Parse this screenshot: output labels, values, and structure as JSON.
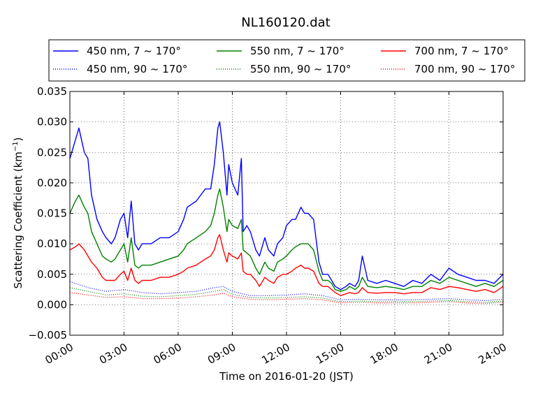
{
  "chart_data": {
    "type": "line",
    "title": "NL160120.dat",
    "xlabel": "Time on 2016-01-20 (JST)",
    "ylabel_main": "Scattering Coefficient (km",
    "ylabel_sup": "−1",
    "ylabel_close": ")",
    "xlim": [
      0,
      24
    ],
    "ylim": [
      -0.005,
      0.035
    ],
    "xticks": [
      0,
      3,
      6,
      9,
      12,
      15,
      18,
      21,
      24
    ],
    "xtick_labels": [
      "00:00",
      "03:00",
      "06:00",
      "09:00",
      "12:00",
      "15:00",
      "18:00",
      "21:00",
      "24:00"
    ],
    "yticks": [
      -0.005,
      0.0,
      0.005,
      0.01,
      0.015,
      0.02,
      0.025,
      0.03,
      0.035
    ],
    "ytick_labels": [
      "−0.005",
      "0.000",
      "0.005",
      "0.010",
      "0.015",
      "0.020",
      "0.025",
      "0.030",
      "0.035"
    ],
    "grid": true,
    "legend_position": "top, above plot",
    "legend_labels": [
      "450 nm, 7 ~ 170°",
      "550 nm, 7 ~ 170°",
      "700 nm, 7 ~ 170°",
      "450 nm, 90 ~ 170°",
      "550 nm, 90 ~ 170°",
      "700 nm, 90 ~ 170°"
    ],
    "series": [
      {
        "name": "450 nm, 7 ~ 170°",
        "color": "#0000ff",
        "style": "solid",
        "x": [
          0,
          0.3,
          0.5,
          0.8,
          1.0,
          1.2,
          1.5,
          1.8,
          2.0,
          2.3,
          2.5,
          2.8,
          3.0,
          3.2,
          3.4,
          3.6,
          3.8,
          4.0,
          4.5,
          5.0,
          5.5,
          6.0,
          6.3,
          6.5,
          7.0,
          7.5,
          7.8,
          8.0,
          8.2,
          8.3,
          8.5,
          8.7,
          8.8,
          9.0,
          9.3,
          9.5,
          9.6,
          9.8,
          10.0,
          10.3,
          10.5,
          10.8,
          11.0,
          11.3,
          11.5,
          11.8,
          12.0,
          12.3,
          12.5,
          12.8,
          13.0,
          13.2,
          13.5,
          13.8,
          14.0,
          14.3,
          14.5,
          14.7,
          15.0,
          15.3,
          15.5,
          15.8,
          16.0,
          16.2,
          16.5,
          17.0,
          17.5,
          18.0,
          18.5,
          19.0,
          19.5,
          20.0,
          20.5,
          21.0,
          21.5,
          22.0,
          22.5,
          23.0,
          23.5,
          24.0
        ],
        "y": [
          0.024,
          0.027,
          0.029,
          0.025,
          0.024,
          0.018,
          0.014,
          0.012,
          0.011,
          0.01,
          0.011,
          0.014,
          0.015,
          0.011,
          0.017,
          0.01,
          0.009,
          0.01,
          0.01,
          0.011,
          0.011,
          0.012,
          0.014,
          0.016,
          0.017,
          0.019,
          0.019,
          0.023,
          0.029,
          0.03,
          0.025,
          0.018,
          0.023,
          0.02,
          0.018,
          0.024,
          0.012,
          0.013,
          0.012,
          0.009,
          0.008,
          0.011,
          0.009,
          0.008,
          0.01,
          0.011,
          0.013,
          0.014,
          0.014,
          0.016,
          0.015,
          0.015,
          0.014,
          0.007,
          0.005,
          0.005,
          0.004,
          0.003,
          0.0025,
          0.003,
          0.0035,
          0.003,
          0.004,
          0.008,
          0.004,
          0.0035,
          0.004,
          0.0035,
          0.003,
          0.004,
          0.0035,
          0.005,
          0.004,
          0.006,
          0.005,
          0.0045,
          0.004,
          0.004,
          0.0035,
          0.005
        ]
      },
      {
        "name": "550 nm, 7 ~ 170°",
        "color": "#008000",
        "style": "solid",
        "x": [
          0,
          0.3,
          0.5,
          0.8,
          1.0,
          1.2,
          1.5,
          1.8,
          2.0,
          2.3,
          2.5,
          2.8,
          3.0,
          3.2,
          3.4,
          3.6,
          3.8,
          4.0,
          4.5,
          5.0,
          5.5,
          6.0,
          6.3,
          6.5,
          7.0,
          7.5,
          7.8,
          8.0,
          8.2,
          8.3,
          8.5,
          8.7,
          8.8,
          9.0,
          9.3,
          9.5,
          9.6,
          9.8,
          10.0,
          10.3,
          10.5,
          10.8,
          11.0,
          11.3,
          11.5,
          11.8,
          12.0,
          12.3,
          12.5,
          12.8,
          13.0,
          13.2,
          13.5,
          13.8,
          14.0,
          14.3,
          14.5,
          14.7,
          15.0,
          15.3,
          15.5,
          15.8,
          16.0,
          16.2,
          16.5,
          17.0,
          17.5,
          18.0,
          18.5,
          19.0,
          19.5,
          20.0,
          20.5,
          21.0,
          21.5,
          22.0,
          22.5,
          23.0,
          23.5,
          24.0
        ],
        "y": [
          0.015,
          0.017,
          0.018,
          0.016,
          0.015,
          0.012,
          0.01,
          0.008,
          0.0075,
          0.007,
          0.0075,
          0.009,
          0.01,
          0.007,
          0.011,
          0.0065,
          0.006,
          0.0065,
          0.0065,
          0.007,
          0.0075,
          0.008,
          0.009,
          0.01,
          0.011,
          0.012,
          0.013,
          0.015,
          0.018,
          0.019,
          0.016,
          0.012,
          0.014,
          0.013,
          0.0125,
          0.014,
          0.009,
          0.0085,
          0.008,
          0.006,
          0.005,
          0.007,
          0.006,
          0.0055,
          0.007,
          0.0075,
          0.008,
          0.009,
          0.0095,
          0.01,
          0.01,
          0.01,
          0.009,
          0.0055,
          0.004,
          0.004,
          0.0035,
          0.0025,
          0.0022,
          0.0025,
          0.003,
          0.0025,
          0.003,
          0.0045,
          0.003,
          0.0028,
          0.003,
          0.0028,
          0.0025,
          0.003,
          0.003,
          0.004,
          0.0035,
          0.0045,
          0.004,
          0.0035,
          0.003,
          0.0035,
          0.003,
          0.004
        ]
      },
      {
        "name": "700 nm, 7 ~ 170°",
        "color": "#ff0000",
        "style": "solid",
        "x": [
          0,
          0.3,
          0.5,
          0.8,
          1.0,
          1.2,
          1.5,
          1.8,
          2.0,
          2.3,
          2.5,
          2.8,
          3.0,
          3.2,
          3.4,
          3.6,
          3.8,
          4.0,
          4.5,
          5.0,
          5.5,
          6.0,
          6.3,
          6.5,
          7.0,
          7.5,
          7.8,
          8.0,
          8.2,
          8.3,
          8.5,
          8.7,
          8.8,
          9.0,
          9.3,
          9.5,
          9.6,
          9.8,
          10.0,
          10.3,
          10.5,
          10.8,
          11.0,
          11.3,
          11.5,
          11.8,
          12.0,
          12.3,
          12.5,
          12.8,
          13.0,
          13.2,
          13.5,
          13.8,
          14.0,
          14.3,
          14.5,
          14.7,
          15.0,
          15.3,
          15.5,
          15.8,
          16.0,
          16.2,
          16.5,
          17.0,
          17.5,
          18.0,
          18.5,
          19.0,
          19.5,
          20.0,
          20.5,
          21.0,
          21.5,
          22.0,
          22.5,
          23.0,
          23.5,
          24.0
        ],
        "y": [
          0.009,
          0.0095,
          0.01,
          0.009,
          0.008,
          0.007,
          0.006,
          0.0045,
          0.004,
          0.004,
          0.004,
          0.005,
          0.0055,
          0.004,
          0.006,
          0.004,
          0.0035,
          0.004,
          0.004,
          0.0045,
          0.0045,
          0.005,
          0.0055,
          0.006,
          0.0065,
          0.0075,
          0.008,
          0.009,
          0.011,
          0.0115,
          0.009,
          0.007,
          0.0085,
          0.008,
          0.0075,
          0.0085,
          0.0055,
          0.005,
          0.005,
          0.004,
          0.003,
          0.0045,
          0.004,
          0.0035,
          0.0045,
          0.005,
          0.005,
          0.0055,
          0.006,
          0.0065,
          0.006,
          0.006,
          0.0055,
          0.0035,
          0.003,
          0.003,
          0.0025,
          0.002,
          0.0015,
          0.0018,
          0.002,
          0.0018,
          0.002,
          0.0028,
          0.002,
          0.0019,
          0.002,
          0.002,
          0.0018,
          0.002,
          0.002,
          0.0028,
          0.0025,
          0.003,
          0.0028,
          0.0025,
          0.0022,
          0.0025,
          0.002,
          0.003
        ]
      },
      {
        "name": "450 nm, 90 ~ 170°",
        "color": "#0000ff",
        "style": "dotted",
        "x": [
          0,
          1,
          2,
          3,
          4,
          5,
          6,
          7,
          8,
          8.5,
          9,
          10,
          11,
          12,
          13,
          14,
          15,
          16,
          17,
          18,
          19,
          20,
          21,
          22,
          23,
          24
        ],
        "y": [
          0.0038,
          0.0028,
          0.0022,
          0.0025,
          0.002,
          0.0018,
          0.002,
          0.0022,
          0.0028,
          0.003,
          0.0022,
          0.0015,
          0.0015,
          0.0016,
          0.0018,
          0.0015,
          0.0008,
          0.0009,
          0.0008,
          0.0008,
          0.0008,
          0.0009,
          0.001,
          0.0008,
          0.0007,
          0.0009
        ]
      },
      {
        "name": "550 nm, 90 ~ 170°",
        "color": "#008000",
        "style": "dotted",
        "x": [
          0,
          1,
          2,
          3,
          4,
          5,
          6,
          7,
          8,
          8.5,
          9,
          10,
          11,
          12,
          13,
          14,
          15,
          16,
          17,
          18,
          19,
          20,
          21,
          22,
          23,
          24
        ],
        "y": [
          0.0028,
          0.0022,
          0.0016,
          0.0018,
          0.0014,
          0.0013,
          0.0015,
          0.0017,
          0.0022,
          0.0025,
          0.0017,
          0.0012,
          0.0011,
          0.0012,
          0.0013,
          0.0011,
          0.0005,
          0.0006,
          0.0005,
          0.0005,
          0.0005,
          0.0006,
          0.0007,
          0.0005,
          0.0004,
          0.0006
        ]
      },
      {
        "name": "700 nm, 90 ~ 170°",
        "color": "#ff0000",
        "style": "dotted",
        "x": [
          0,
          1,
          2,
          3,
          4,
          5,
          6,
          7,
          8,
          8.5,
          9,
          10,
          11,
          12,
          13,
          14,
          15,
          16,
          17,
          18,
          19,
          20,
          21,
          22,
          23,
          24
        ],
        "y": [
          0.002,
          0.0016,
          0.0012,
          0.0013,
          0.001,
          0.001,
          0.0011,
          0.0013,
          0.0016,
          0.0019,
          0.0013,
          0.0009,
          0.0008,
          0.0009,
          0.001,
          0.0008,
          0.0003,
          0.0004,
          0.0003,
          0.0003,
          0.0003,
          0.0004,
          0.0005,
          0.0003,
          0.0002,
          0.0004
        ]
      }
    ]
  }
}
